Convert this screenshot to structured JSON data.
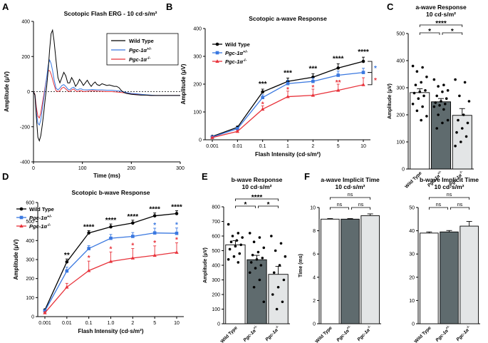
{
  "colors": {
    "wt": "#000000",
    "het": "#3a78e0",
    "ko": "#e8333b",
    "het_bar": "#5f6b6e",
    "ko_bar": "#d9dcdd"
  },
  "chart_data": [
    {
      "panel": "A",
      "type": "line",
      "title": "Scotopic Flash ERG - 10 cd·s/m²",
      "xlabel": "Time (ms)",
      "ylabel": "Amplitude (μV)",
      "xlim": [
        0,
        300
      ],
      "ylim": [
        -400,
        400
      ],
      "x_ticks": [
        "0",
        "100",
        "200",
        "300"
      ],
      "y_ticks": [
        "-400",
        "-200",
        "0",
        "200",
        "400"
      ],
      "legend": [
        "Wild Type",
        "Pgc-1α+/-",
        "Pgc-1α-/-"
      ],
      "series": [
        {
          "name": "Wild Type",
          "color": "#000000",
          "x": [
            0,
            3,
            6,
            9,
            12,
            15,
            18,
            21,
            24,
            27,
            30,
            33,
            36,
            39,
            42,
            46,
            50,
            54,
            58,
            62,
            66,
            70,
            74,
            78,
            82,
            86,
            90,
            94,
            98,
            102,
            106,
            110,
            114,
            118,
            122,
            126,
            130,
            135,
            140,
            145,
            150,
            155,
            160,
            165,
            170,
            175,
            180,
            185,
            190,
            200,
            210,
            220,
            230,
            240,
            250,
            260,
            270,
            280,
            290,
            300
          ],
          "y": [
            0,
            -20,
            -150,
            -260,
            -280,
            -250,
            -190,
            -120,
            -40,
            30,
            120,
            240,
            330,
            350,
            290,
            180,
            80,
            50,
            80,
            110,
            90,
            50,
            50,
            80,
            60,
            30,
            45,
            70,
            55,
            35,
            50,
            65,
            45,
            30,
            45,
            55,
            40,
            35,
            45,
            40,
            35,
            38,
            34,
            30,
            30,
            22,
            5,
            -5,
            -10,
            -15,
            -18,
            -20,
            -20,
            -22,
            -22,
            -22,
            -22,
            -22,
            -22,
            -22
          ]
        },
        {
          "name": "Pgc-1α+/-",
          "color": "#3a78e0",
          "x": [
            0,
            3,
            6,
            9,
            12,
            15,
            18,
            21,
            24,
            27,
            30,
            33,
            36,
            39,
            42,
            46,
            50,
            54,
            58,
            62,
            66,
            70,
            74,
            78,
            82,
            86,
            90,
            94,
            98,
            102,
            110,
            120,
            130,
            140,
            150,
            160,
            170,
            180,
            190,
            200,
            210,
            220,
            230,
            240,
            250,
            260,
            270,
            280,
            290,
            300
          ],
          "y": [
            0,
            -20,
            -120,
            -180,
            -190,
            -160,
            -100,
            -40,
            20,
            80,
            150,
            180,
            160,
            120,
            70,
            20,
            10,
            20,
            35,
            40,
            30,
            15,
            10,
            20,
            25,
            15,
            10,
            15,
            15,
            10,
            10,
            12,
            10,
            10,
            8,
            8,
            5,
            2,
            -5,
            -10,
            -12,
            -15,
            -18,
            -20,
            -22,
            -22,
            -22,
            -22,
            -22,
            -22
          ]
        },
        {
          "name": "Pgc-1α-/-",
          "color": "#e8333b",
          "x": [
            0,
            3,
            6,
            9,
            12,
            15,
            18,
            21,
            24,
            27,
            30,
            33,
            36,
            39,
            42,
            46,
            50,
            54,
            58,
            62,
            66,
            70,
            74,
            78,
            82,
            86,
            90,
            94,
            98,
            102,
            110,
            120,
            130,
            140,
            150,
            160,
            170,
            180,
            190,
            200,
            210,
            220,
            230,
            240,
            250,
            260,
            270,
            280,
            290,
            300
          ],
          "y": [
            0,
            -15,
            -90,
            -140,
            -150,
            -120,
            -70,
            -20,
            30,
            80,
            120,
            120,
            100,
            70,
            40,
            5,
            0,
            5,
            20,
            25,
            15,
            5,
            0,
            10,
            15,
            5,
            0,
            5,
            5,
            0,
            2,
            5,
            3,
            2,
            0,
            0,
            -2,
            -5,
            -8,
            -12,
            -15,
            -18,
            -20,
            -22,
            -22,
            -22,
            -22,
            -22,
            -22,
            -22
          ]
        }
      ]
    },
    {
      "panel": "B",
      "type": "line",
      "title": "Scotopic a-wave Response",
      "xlabel": "Flash Intensity  (cd·s/m²)",
      "ylabel": "Amplitude (μV)",
      "categories": [
        "0.001",
        "0.01",
        "0.1",
        "1",
        "2",
        "5",
        "10"
      ],
      "ylim": [
        0,
        400
      ],
      "y_ticks": [
        "0",
        "100",
        "200",
        "300",
        "400"
      ],
      "legend": [
        "Wild Type",
        "Pgc-1α+/-",
        "Pgc-1α-/-"
      ],
      "series": [
        {
          "name": "Wild Type",
          "values": [
            12,
            45,
            172,
            210,
            225,
            258,
            282
          ],
          "errors": [
            2,
            4,
            10,
            12,
            12,
            15,
            15
          ]
        },
        {
          "name": "Pgc-1α+/-",
          "values": [
            10,
            40,
            152,
            202,
            210,
            232,
            242
          ],
          "errors": [
            2,
            4,
            10,
            12,
            12,
            15,
            15
          ]
        },
        {
          "name": "Pgc-1α-/-",
          "values": [
            8,
            30,
            110,
            155,
            160,
            178,
            198
          ],
          "errors": [
            2,
            4,
            12,
            20,
            22,
            22,
            25
          ]
        }
      ],
      "sig_black": [
        "***",
        "***",
        "***",
        "****",
        "****"
      ],
      "sig_red": [
        "*",
        "*",
        "*",
        "**"
      ],
      "bracket_blue": "*",
      "bracket_red": "*"
    },
    {
      "panel": "C",
      "type": "bar",
      "title": "a-wave Response",
      "subtitle": "10 cd·s/m²",
      "ylabel": "Amplitude (μV)",
      "categories": [
        "Wild Type",
        "Pgc-1α+/-",
        "Pgc-1α-/-"
      ],
      "values": [
        282,
        248,
        198
      ],
      "errors": [
        14,
        12,
        25
      ],
      "ylim": [
        0,
        500
      ],
      "y_ticks": [
        "0",
        "100",
        "200",
        "300",
        "400",
        "500"
      ],
      "points": [
        [
          380,
          375,
          360,
          340,
          320,
          310,
          290,
          285,
          280,
          270,
          260,
          240,
          230,
          215,
          195,
          180
        ],
        [
          330,
          310,
          305,
          290,
          285,
          270,
          260,
          250,
          245,
          240,
          235,
          230,
          220,
          200,
          180,
          170,
          150
        ],
        [
          330,
          320,
          270,
          250,
          200,
          180,
          170,
          150,
          135,
          120,
          100,
          85
        ]
      ],
      "significance": [
        {
          "pair": "1-2",
          "label": "*"
        },
        {
          "pair": "1-3",
          "label": "****"
        },
        {
          "pair": "2-3",
          "label": "*"
        }
      ]
    },
    {
      "panel": "D",
      "type": "line",
      "title": "Scotopic b-wave Response",
      "xlabel": "Flash Intensity  (cd·s/m²)",
      "ylabel": "Amplitude (μV)",
      "categories": [
        "0.001",
        "0.01",
        "0.1",
        "1.0",
        "2",
        "5",
        "10"
      ],
      "ylim": [
        0,
        600
      ],
      "y_ticks": [
        "0",
        "100",
        "200",
        "300",
        "400",
        "500",
        "600"
      ],
      "legend": [
        "Wild Type",
        "Pgc-1α+/-",
        "Pgc-1α-/-"
      ],
      "series": [
        {
          "name": "Wild Type",
          "values": [
            35,
            288,
            440,
            472,
            492,
            530,
            542
          ],
          "errors": [
            5,
            15,
            12,
            15,
            15,
            15,
            15
          ]
        },
        {
          "name": "Pgc-1α+/-",
          "values": [
            30,
            240,
            358,
            412,
            422,
            440,
            438
          ],
          "errors": [
            5,
            20,
            15,
            20,
            20,
            25,
            28
          ]
        },
        {
          "name": "Pgc-1α-/-",
          "values": [
            20,
            155,
            242,
            290,
            308,
            322,
            338
          ],
          "errors": [
            5,
            20,
            50,
            50,
            50,
            50,
            50
          ]
        }
      ],
      "sig_black": [
        "**",
        "****",
        "****",
        "****",
        "****",
        "****"
      ],
      "sig_blue": [
        "*",
        "*"
      ],
      "sig_red": [
        "*",
        "*",
        "*",
        "*",
        "*"
      ]
    },
    {
      "panel": "E",
      "type": "bar",
      "title": "b-wave Response",
      "subtitle": "10 cd·s/m²",
      "ylabel": "Amplitude (μV)",
      "categories": [
        "Wild Type",
        "Pgc-1α+/-",
        "Pgc-1α-/-"
      ],
      "values": [
        540,
        438,
        338
      ],
      "errors": [
        28,
        30,
        55
      ],
      "ylim": [
        0,
        800
      ],
      "y_ticks": [
        "0",
        "100",
        "200",
        "300",
        "400",
        "500",
        "600",
        "700",
        "800"
      ],
      "points": [
        [
          680,
          620,
          600,
          590,
          570,
          560,
          540,
          530,
          510,
          480,
          460,
          440,
          420
        ],
        [
          620,
          590,
          560,
          520,
          490,
          470,
          450,
          440,
          420,
          400,
          380,
          350,
          300,
          250,
          150
        ],
        [
          600,
          550,
          500,
          460,
          400,
          350,
          300,
          250,
          200,
          150,
          100
        ]
      ],
      "significance": [
        {
          "pair": "1-2",
          "label": "*"
        },
        {
          "pair": "1-3",
          "label": "****"
        },
        {
          "pair": "2-3",
          "label": "*"
        }
      ]
    },
    {
      "panel": "F1",
      "type": "bar",
      "title": "a-wave Implicit Time",
      "subtitle": "10 cd·s/m²",
      "ylabel": "Time (ms)",
      "categories": [
        "Wild Type",
        "Pgc-1α+/-",
        "Pgc-1α-/-"
      ],
      "values": [
        9.0,
        9.0,
        9.3
      ],
      "errors": [
        0.05,
        0.05,
        0.15
      ],
      "ylim": [
        0,
        10
      ],
      "y_ticks": [
        "0",
        "2",
        "4",
        "6",
        "8",
        "10"
      ],
      "significance": [
        {
          "pair": "1-2",
          "label": "ns"
        },
        {
          "pair": "1-3",
          "label": "ns"
        },
        {
          "pair": "2-3",
          "label": "ns"
        }
      ]
    },
    {
      "panel": "F2",
      "type": "bar",
      "title": "b-wave Implicit Time",
      "subtitle": "10 cd·s/m²",
      "ylabel": "",
      "categories": [
        "Wild Type",
        "Pgc-1α+/-",
        "Pgc-1α-/-"
      ],
      "values": [
        39,
        39.5,
        42
      ],
      "errors": [
        0.5,
        0.6,
        2.0
      ],
      "ylim": [
        0,
        50
      ],
      "y_ticks": [
        "0",
        "10",
        "20",
        "30",
        "40",
        "50"
      ],
      "significance": [
        {
          "pair": "1-2",
          "label": "ns"
        },
        {
          "pair": "1-3",
          "label": "ns"
        },
        {
          "pair": "2-3",
          "label": "ns"
        }
      ]
    }
  ],
  "panel_labels": [
    "A",
    "B",
    "C",
    "D",
    "E",
    "F"
  ]
}
